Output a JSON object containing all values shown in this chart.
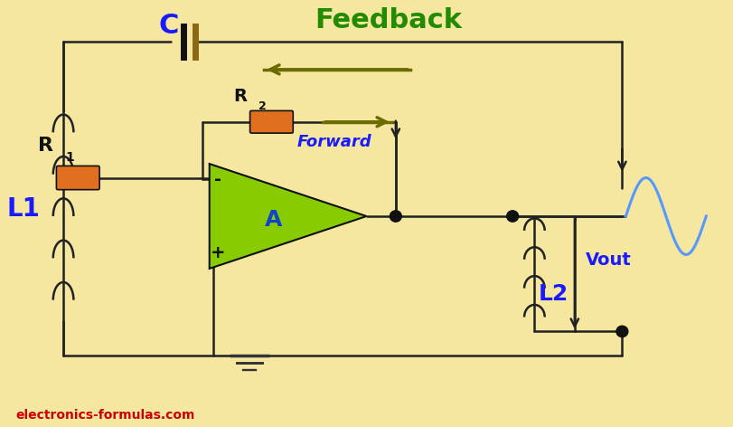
{
  "bg_color": "#f5e6a0",
  "title_text": "Feedback",
  "title_color": "#228B00",
  "title_fontsize": 22,
  "watermark": "electronics-formulas.com",
  "watermark_color": "#cc0000",
  "label_color": "#1a1aff",
  "wire_color": "#222222",
  "resistor_color": "#e07020",
  "opamp_color": "#88cc00",
  "opamp_label": "A",
  "C_label": "C",
  "R1_label": "R",
  "R1_sub": "1",
  "R2_label": "R",
  "R2_sub": "2",
  "L1_label": "L1",
  "L2_label": "L2",
  "Vout_label": "Vout",
  "forward_label": "Forward",
  "feedback_arrow_color": "#6b6b00",
  "forward_arrow_color": "#6b6b00",
  "node_color": "#111111",
  "sine_color": "#5599ff",
  "ground_color": "#333333"
}
